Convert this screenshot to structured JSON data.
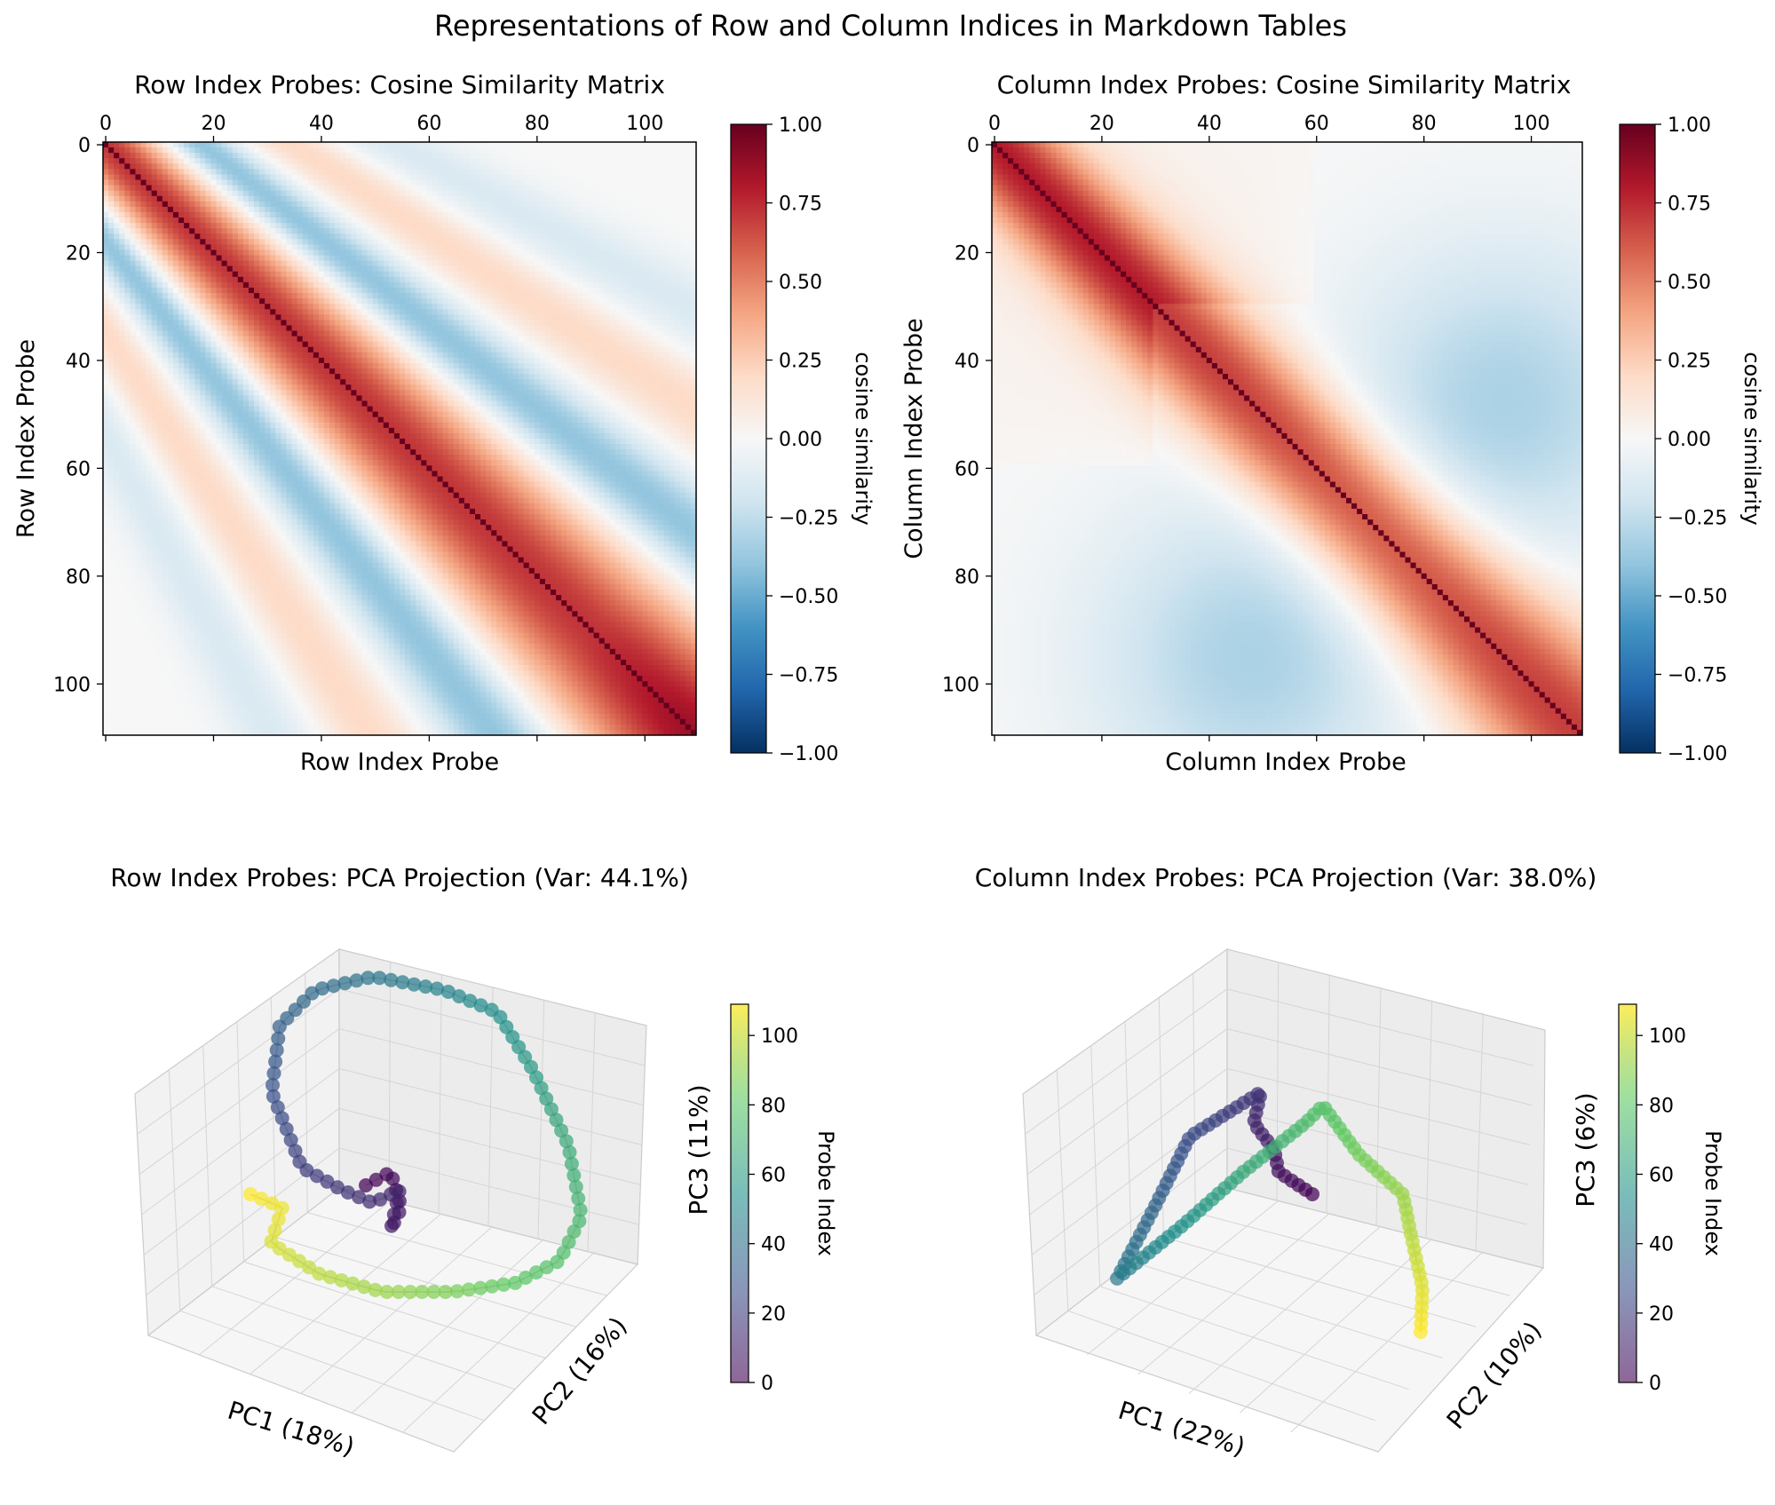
{
  "figure": {
    "title": "Representations of Row and Column Indices in Markdown Tables"
  },
  "chart_data": [
    {
      "type": "heatmap",
      "title": "Row Index Probes: Cosine Similarity Matrix",
      "xlabel": "Row Index Probe",
      "ylabel": "Row Index Probe",
      "n": 110,
      "xticks": [
        "0",
        "20",
        "40",
        "60",
        "80",
        "100"
      ],
      "yticks": [
        "0",
        "20",
        "40",
        "60",
        "80",
        "100"
      ],
      "colorbar": {
        "label": "cosine similarity",
        "range": [
          -1,
          1
        ],
        "ticks": [
          "1.00",
          "0.75",
          "0.50",
          "0.25",
          "0.00",
          "−0.25",
          "−0.50",
          "−0.75",
          "−1.00"
        ],
        "colormap": "RdBu_r"
      },
      "pattern": "bands"
    },
    {
      "type": "heatmap",
      "title": "Column Index Probes: Cosine Similarity Matrix",
      "xlabel": "Column Index Probe",
      "ylabel": "Column Index Probe",
      "n": 110,
      "xticks": [
        "0",
        "20",
        "40",
        "60",
        "80",
        "100"
      ],
      "yticks": [
        "0",
        "20",
        "40",
        "60",
        "80",
        "100"
      ],
      "colorbar": {
        "label": "cosine similarity",
        "range": [
          -1,
          1
        ],
        "ticks": [
          "1.00",
          "0.75",
          "0.50",
          "0.25",
          "0.00",
          "−0.25",
          "−0.50",
          "−0.75",
          "−1.00"
        ],
        "colormap": "RdBu_r"
      },
      "pattern": "smooth"
    },
    {
      "type": "scatter",
      "projection": "3d",
      "title": "Row Index Probes: PCA Projection (Var: 44.1%)",
      "xlabel": "PC1 (18%)",
      "ylabel": "PC2 (16%)",
      "zlabel": "PC3 (11%)",
      "colorbar": {
        "label": "Probe Index",
        "range": [
          0,
          109
        ],
        "ticks": [
          "100",
          "80",
          "60",
          "40",
          "20",
          "0"
        ],
        "colormap": "viridis"
      },
      "trajectory": "spiral loop starting at center cluster (indices 0-20), looping out and back, ending at left cluster (indices 95-109)"
    },
    {
      "type": "scatter",
      "projection": "3d",
      "title": "Column Index Probes: PCA Projection (Var: 38.0%)",
      "xlabel": "PC1 (22%)",
      "ylabel": "PC2 (10%)",
      "zlabel": "PC3 (6%)",
      "colorbar": {
        "label": "Probe Index",
        "range": [
          0,
          109
        ],
        "ticks": [
          "100",
          "80",
          "60",
          "40",
          "20",
          "0"
        ],
        "colormap": "viridis"
      },
      "trajectory": "arch: starts center (0-10), rises, drops to lower-left corner (~35), climbs to peak (~55), descends to lower right (109)"
    }
  ],
  "colors": {
    "heat_pos": "#67001f",
    "heat_neg": "#053061",
    "pane": "#f2f2f2",
    "grid": "#d0d0d0"
  }
}
